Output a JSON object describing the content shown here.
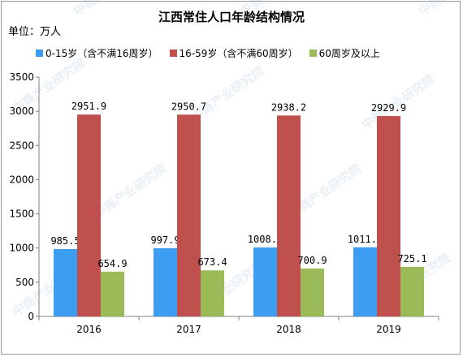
{
  "unit_label": "单位：万人",
  "colors": {
    "s0": "#3d9df0",
    "s1": "#c0504d",
    "s2": "#9bbb59"
  },
  "watermark_text": "中商产业研究院",
  "chart_data": {
    "type": "bar",
    "title": "江西常住人口年龄结构情况",
    "xlabel": "",
    "ylabel": "",
    "categories": [
      "2016",
      "2017",
      "2018",
      "2019"
    ],
    "ylim": [
      0,
      3500
    ],
    "yticks": [
      0,
      500,
      1000,
      1500,
      2000,
      2500,
      3000,
      3500
    ],
    "grid": false,
    "legend_position": "top",
    "series": [
      {
        "name": "0-15岁（含不满16周岁）",
        "values": [
          985.5,
          997.9,
          1008.5,
          1011.2
        ],
        "labels": [
          "985.5",
          "997.9",
          "1008.5",
          "1011.2"
        ]
      },
      {
        "name": "16-59岁（含不满60周岁）",
        "values": [
          2951.9,
          2950.7,
          2938.2,
          2929.9
        ],
        "labels": [
          "2951.9",
          "2950.7",
          "2938.2",
          "2929.9"
        ]
      },
      {
        "name": "60周岁及以上",
        "values": [
          654.9,
          673.4,
          700.9,
          725.1
        ],
        "labels": [
          "654.9",
          "673.4",
          "700.9",
          "725.1"
        ]
      }
    ]
  }
}
